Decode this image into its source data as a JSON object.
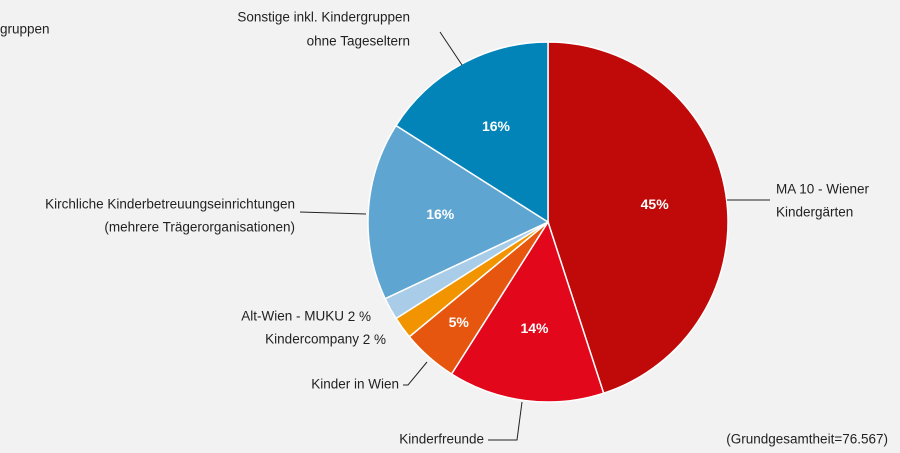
{
  "chart_data": {
    "type": "pie",
    "clipped_label": "gruppen",
    "categories": [
      [
        "MA 10 - Wiener",
        "Kindergärten"
      ],
      [
        "Kinderfreunde"
      ],
      [
        "Kinder in Wien"
      ],
      [
        "Kindercompany"
      ],
      [
        "Alt-Wien - MUKU"
      ],
      [
        "Kirchliche Kinderbetreuungseinrichtungen",
        "(mehrere Trägerorganisationen)"
      ],
      [
        "Sonstige inkl. Kindergruppen",
        "ohne Tageseltern"
      ]
    ],
    "values": [
      45,
      14,
      5,
      2,
      2,
      16,
      16
    ],
    "value_labels": [
      "45%",
      "14%",
      "5%",
      "2 %",
      "2 %",
      "16%",
      "16%"
    ],
    "colors": [
      "#c00a0a",
      "#e3071b",
      "#e6560f",
      "#f29400",
      "#a9cde8",
      "#5ea5d1",
      "#0284b8"
    ],
    "footnote": "(Grundgesamtheit=76.567)"
  }
}
